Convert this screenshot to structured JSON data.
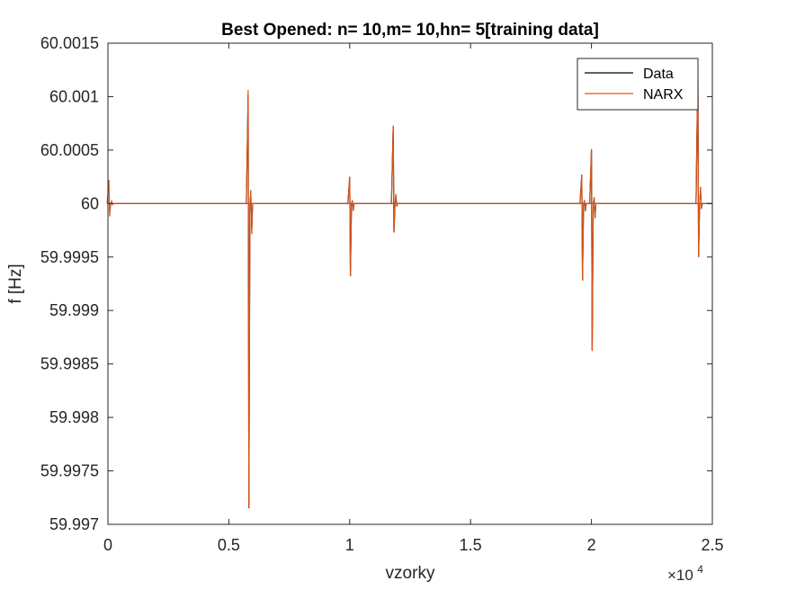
{
  "chart_data": {
    "type": "line",
    "title": "Best Opened: n= 10,m= 10,hn= 5[training data]",
    "xlabel": "vzorky",
    "ylabel": "f [Hz]",
    "xlim": [
      0,
      25000
    ],
    "ylim": [
      59.997,
      60.0015
    ],
    "x_ticks": [
      0,
      5000,
      10000,
      15000,
      20000,
      25000
    ],
    "x_tick_labels": [
      "0",
      "0.5",
      "1",
      "1.5",
      "2",
      "2.5"
    ],
    "x_exponent_label": "×10",
    "x_exponent_power": "4",
    "y_ticks": [
      59.997,
      59.9975,
      59.998,
      59.9985,
      59.999,
      59.9995,
      60,
      60.0005,
      60.001,
      60.0015
    ],
    "y_tick_labels": [
      "59.997",
      "59.9975",
      "59.998",
      "59.9985",
      "59.999",
      "59.9995",
      "60",
      "60.0005",
      "60.001",
      "60.0015"
    ],
    "grid": false,
    "legend_position": "top-right",
    "baseline": 60.0,
    "series": [
      {
        "name": "Data",
        "color": "#000000",
        "spikes": [
          {
            "x": 5800,
            "max": 60.00102,
            "min": 59.99715
          },
          {
            "x": 10000,
            "max": 60.00025,
            "min": 59.99932
          },
          {
            "x": 11800,
            "max": 60.00072,
            "min": 59.99973
          },
          {
            "x": 19600,
            "max": 60.00027,
            "min": 59.99928
          },
          {
            "x": 20000,
            "max": 60.0005,
            "min": 59.99863
          },
          {
            "x": 24400,
            "max": 60.0013,
            "min": 59.9995
          }
        ]
      },
      {
        "name": "NARX",
        "color": "#D95319",
        "spikes": [
          {
            "x": 40,
            "max": 60.00022,
            "min": 59.99988
          },
          {
            "x": 5800,
            "max": 60.00106,
            "min": 59.99715
          },
          {
            "x": 10000,
            "max": 60.00025,
            "min": 59.99932
          },
          {
            "x": 11800,
            "max": 60.00073,
            "min": 59.99973
          },
          {
            "x": 19600,
            "max": 60.00027,
            "min": 59.99928
          },
          {
            "x": 20000,
            "max": 60.00051,
            "min": 59.99862
          },
          {
            "x": 24400,
            "max": 60.00128,
            "min": 59.9995
          }
        ]
      }
    ]
  }
}
